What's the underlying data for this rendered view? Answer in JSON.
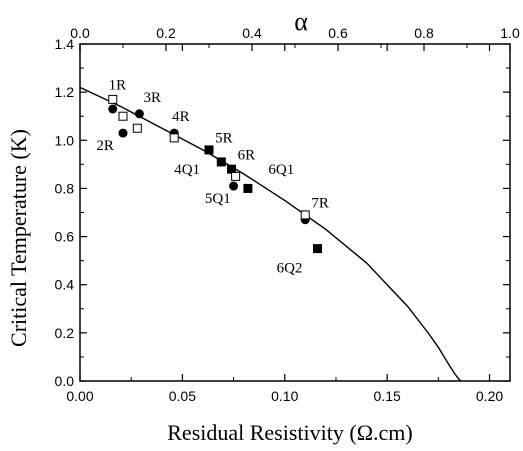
{
  "chart_data": {
    "type": "scatter",
    "title": "",
    "xlabel": "Residual Resistivity (Ω.cm)",
    "ylabel": "Critical Temperature (K)",
    "top_xlabel": "α",
    "xlim": [
      0.0,
      0.21
    ],
    "ylim": [
      0.0,
      1.4
    ],
    "top_xlim": [
      0.0,
      1.0
    ],
    "x_ticks": [
      "0.00",
      "0.05",
      "0.10",
      "0.15",
      "0.20"
    ],
    "y_ticks": [
      "0.0",
      "0.2",
      "0.4",
      "0.6",
      "0.8",
      "1.0",
      "1.2",
      "1.4"
    ],
    "top_x_ticks": [
      "0.0",
      "0.2",
      "0.4",
      "0.6",
      "0.8",
      "1.0"
    ],
    "grid": false,
    "series": [
      {
        "marker": "filled-circle",
        "points": [
          {
            "x": 0.016,
            "y": 1.13
          },
          {
            "x": 0.029,
            "y": 1.11
          },
          {
            "x": 0.021,
            "y": 1.03
          },
          {
            "x": 0.046,
            "y": 1.03
          },
          {
            "x": 0.075,
            "y": 0.81
          },
          {
            "x": 0.11,
            "y": 0.67
          }
        ]
      },
      {
        "marker": "filled-square",
        "points": [
          {
            "x": 0.063,
            "y": 0.96
          },
          {
            "x": 0.069,
            "y": 0.91
          },
          {
            "x": 0.074,
            "y": 0.88
          },
          {
            "x": 0.082,
            "y": 0.8
          },
          {
            "x": 0.116,
            "y": 0.55
          }
        ]
      },
      {
        "marker": "open-square",
        "points": [
          {
            "x": 0.016,
            "y": 1.17
          },
          {
            "x": 0.021,
            "y": 1.1
          },
          {
            "x": 0.028,
            "y": 1.05
          },
          {
            "x": 0.046,
            "y": 1.01
          },
          {
            "x": 0.076,
            "y": 0.85
          },
          {
            "x": 0.11,
            "y": 0.69
          }
        ]
      }
    ],
    "fit_curve": {
      "x": [
        0.0,
        0.02,
        0.04,
        0.06,
        0.08,
        0.1,
        0.12,
        0.14,
        0.16,
        0.17,
        0.175,
        0.18,
        0.183,
        0.185,
        0.186
      ],
      "y": [
        1.22,
        1.14,
        1.05,
        0.96,
        0.86,
        0.75,
        0.63,
        0.49,
        0.31,
        0.2,
        0.14,
        0.07,
        0.03,
        0.008,
        0.0
      ]
    },
    "annotations": [
      {
        "text": "1R",
        "x": 0.014,
        "y": 1.21
      },
      {
        "text": "3R",
        "x": 0.031,
        "y": 1.16
      },
      {
        "text": "2R",
        "x": 0.008,
        "y": 0.96
      },
      {
        "text": "4R",
        "x": 0.045,
        "y": 1.08
      },
      {
        "text": "5R",
        "x": 0.066,
        "y": 0.99
      },
      {
        "text": "6R",
        "x": 0.077,
        "y": 0.92
      },
      {
        "text": "4Q1",
        "x": 0.046,
        "y": 0.86
      },
      {
        "text": "6Q1",
        "x": 0.092,
        "y": 0.86
      },
      {
        "text": "5Q1",
        "x": 0.061,
        "y": 0.74
      },
      {
        "text": "7R",
        "x": 0.113,
        "y": 0.72
      },
      {
        "text": "6Q2",
        "x": 0.096,
        "y": 0.45
      }
    ]
  }
}
